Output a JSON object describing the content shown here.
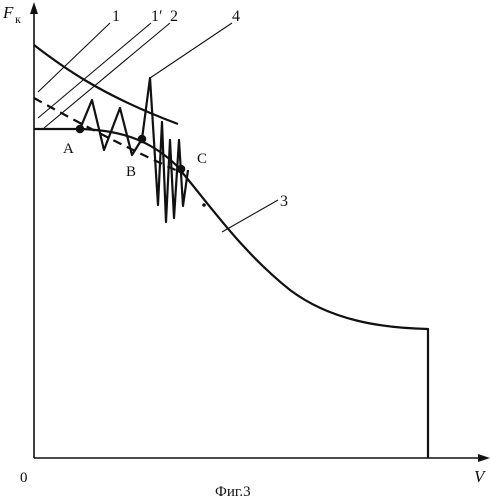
{
  "figure": {
    "caption": "Фиг.3",
    "y_axis_label": {
      "main": "F",
      "sub": "к"
    },
    "x_axis_label": "V",
    "origin_label": "0",
    "curve_numbers": {
      "c1": "1",
      "c1_prime": "1′",
      "c2": "2",
      "c3": "3",
      "c4": "4"
    },
    "point_labels": {
      "a": "A",
      "b": "B",
      "c": "C"
    }
  }
}
